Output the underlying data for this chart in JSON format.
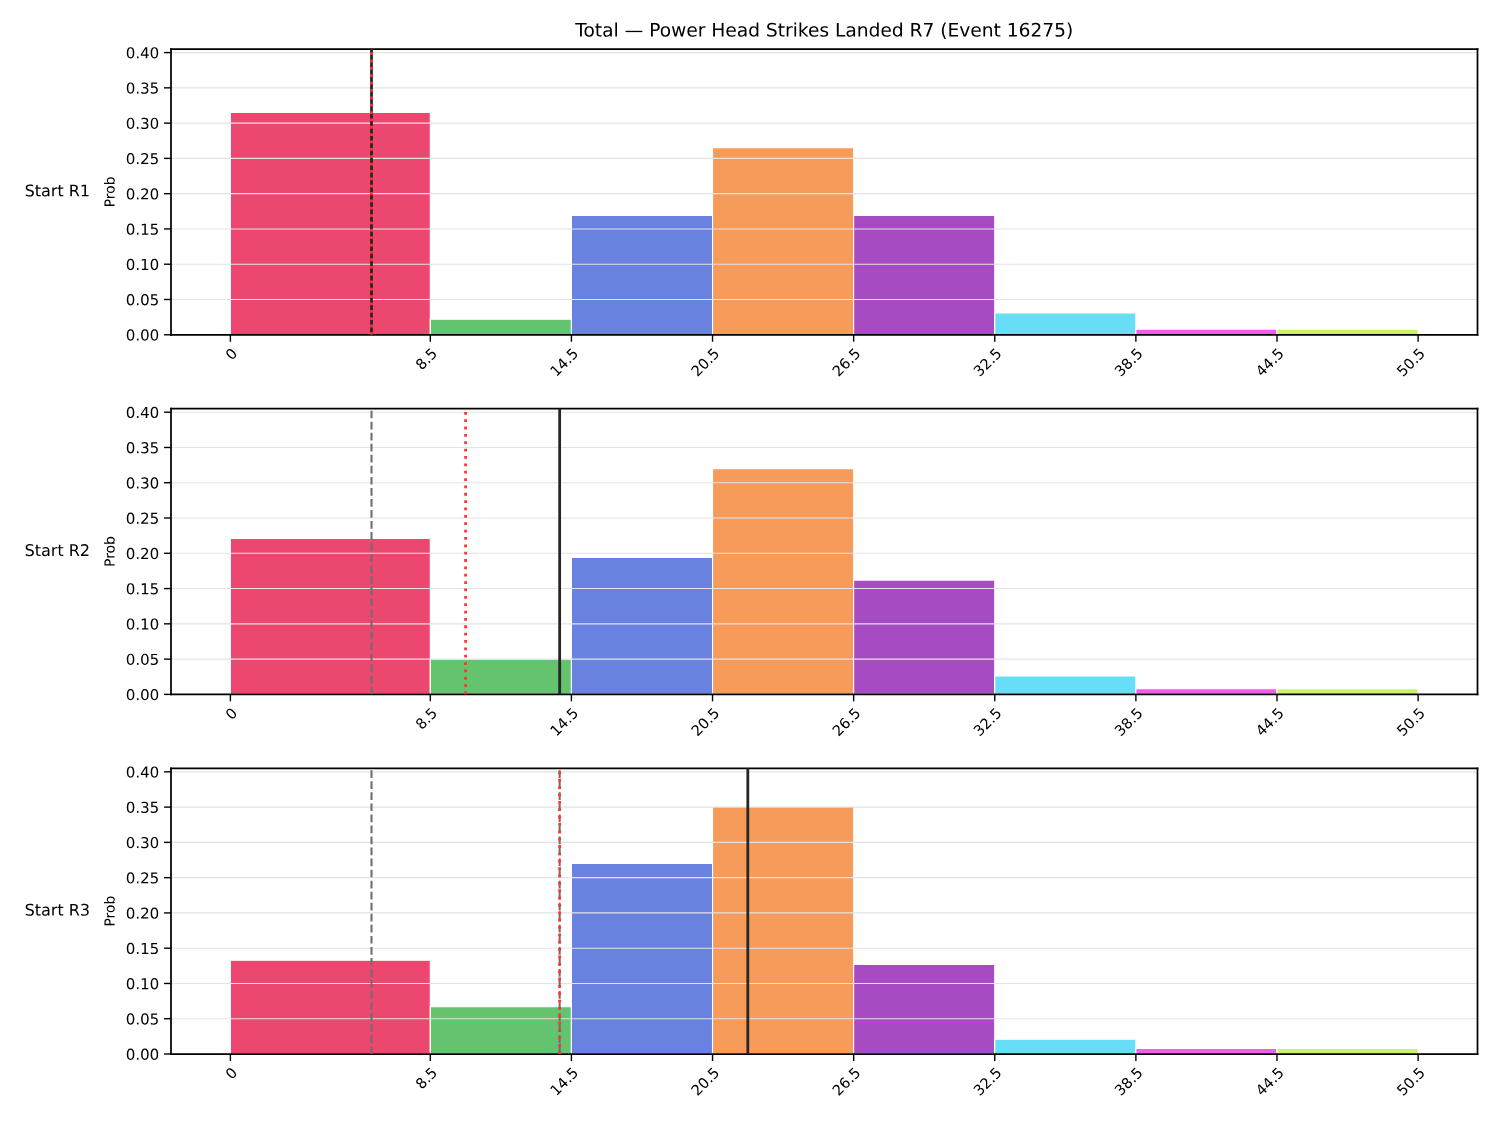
{
  "chart_data": [
    {
      "type": "histogram",
      "title": "Total — Power Head Strikes Landed R7 (Event 16275)",
      "ylabel": "Prob",
      "annotations": [
        "Start R1"
      ],
      "bins": [
        0,
        8.5,
        14.5,
        20.5,
        26.5,
        32.5,
        38.5,
        44.5,
        50.5
      ],
      "values": [
        0.315,
        0.022,
        0.169,
        0.265,
        0.169,
        0.031,
        0.008,
        0.008
      ],
      "colors": [
        "#eb476f",
        "#63c36f",
        "#6982e0",
        "#f79b5a",
        "#a74bc3",
        "#68ddf6",
        "#f35beb",
        "#ccf26a"
      ],
      "xlim": [
        -2.525,
        53.025
      ],
      "xticks": [
        0,
        8.5,
        14.5,
        20.5,
        26.5,
        32.5,
        38.5,
        44.5,
        50.5
      ],
      "ylim": [
        0,
        0.405
      ],
      "yticks": [
        {
          "value": 0,
          "label": "0.00"
        },
        {
          "value": 0.05,
          "label": "0.05"
        },
        {
          "value": 0.1,
          "label": "0.10"
        },
        {
          "value": 0.15,
          "label": "0.15"
        },
        {
          "value": 0.2,
          "label": "0.20"
        },
        {
          "value": 0.25,
          "label": "0.25"
        },
        {
          "value": 0.3,
          "label": "0.30"
        },
        {
          "value": 0.35,
          "label": "0.35"
        },
        {
          "value": 0.4,
          "label": "0.40"
        }
      ],
      "grid": "y",
      "ref_lines": [
        {
          "axis": "x",
          "value": 6,
          "color": "#262626",
          "line_style": "solid"
        },
        {
          "axis": "x",
          "value": 6,
          "color": "#ff3333",
          "line_style": "dotted"
        }
      ]
    },
    {
      "type": "histogram",
      "ylabel": "Prob",
      "annotations": [
        "Start R2"
      ],
      "bins": [
        0,
        8.5,
        14.5,
        20.5,
        26.5,
        32.5,
        38.5,
        44.5,
        50.5
      ],
      "values": [
        0.221,
        0.05,
        0.194,
        0.32,
        0.162,
        0.026,
        0.008,
        0.008
      ],
      "colors": [
        "#eb476f",
        "#63c36f",
        "#6982e0",
        "#f79b5a",
        "#a74bc3",
        "#68ddf6",
        "#f35beb",
        "#ccf26a"
      ],
      "xlim": [
        -2.525,
        53.025
      ],
      "xticks": [
        0,
        8.5,
        14.5,
        20.5,
        26.5,
        32.5,
        38.5,
        44.5,
        50.5
      ],
      "ylim": [
        0,
        0.405
      ],
      "yticks": [
        {
          "value": 0,
          "label": "0.00"
        },
        {
          "value": 0.05,
          "label": "0.05"
        },
        {
          "value": 0.1,
          "label": "0.10"
        },
        {
          "value": 0.15,
          "label": "0.15"
        },
        {
          "value": 0.2,
          "label": "0.20"
        },
        {
          "value": 0.25,
          "label": "0.25"
        },
        {
          "value": 0.3,
          "label": "0.30"
        },
        {
          "value": 0.35,
          "label": "0.35"
        },
        {
          "value": 0.4,
          "label": "0.40"
        }
      ],
      "grid": "y",
      "ref_lines": [
        {
          "axis": "x",
          "value": 6,
          "color": "#6e6e6e",
          "line_style": "dashed"
        },
        {
          "axis": "x",
          "value": 10,
          "color": "#ff3333",
          "line_style": "dotted"
        },
        {
          "axis": "x",
          "value": 14,
          "color": "#262626",
          "line_style": "solid"
        }
      ]
    },
    {
      "type": "histogram",
      "ylabel": "Prob",
      "annotations": [
        "Start R3"
      ],
      "bins": [
        0,
        8.5,
        14.5,
        20.5,
        26.5,
        32.5,
        38.5,
        44.5,
        50.5
      ],
      "values": [
        0.133,
        0.067,
        0.27,
        0.351,
        0.127,
        0.021,
        0.008,
        0.008
      ],
      "colors": [
        "#eb476f",
        "#63c36f",
        "#6982e0",
        "#f79b5a",
        "#a74bc3",
        "#68ddf6",
        "#f35beb",
        "#ccf26a"
      ],
      "xlim": [
        -2.525,
        53.025
      ],
      "xticks": [
        0,
        8.5,
        14.5,
        20.5,
        26.5,
        32.5,
        38.5,
        44.5,
        50.5
      ],
      "ylim": [
        0,
        0.405
      ],
      "yticks": [
        {
          "value": 0,
          "label": "0.00"
        },
        {
          "value": 0.05,
          "label": "0.05"
        },
        {
          "value": 0.1,
          "label": "0.10"
        },
        {
          "value": 0.15,
          "label": "0.15"
        },
        {
          "value": 0.2,
          "label": "0.20"
        },
        {
          "value": 0.25,
          "label": "0.25"
        },
        {
          "value": 0.3,
          "label": "0.30"
        },
        {
          "value": 0.35,
          "label": "0.35"
        },
        {
          "value": 0.4,
          "label": "0.40"
        }
      ],
      "grid": "y",
      "ref_lines": [
        {
          "axis": "x",
          "value": 6,
          "color": "#6e6e6e",
          "line_style": "dashed"
        },
        {
          "axis": "x",
          "value": 14,
          "color": "#6e6e6e",
          "line_style": "dashed"
        },
        {
          "axis": "x",
          "value": 14,
          "color": "#ff3333",
          "line_style": "dotted"
        },
        {
          "axis": "x",
          "value": 22,
          "color": "#262626",
          "line_style": "solid"
        }
      ]
    }
  ]
}
